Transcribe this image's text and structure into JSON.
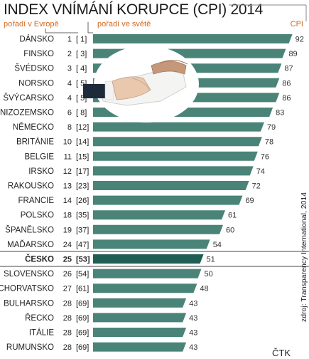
{
  "chart_data": {
    "type": "bar",
    "orientation": "horizontal",
    "title": "INDEX VNÍMÁNÍ KORUPCE (CPI) 2014",
    "header_europe": "pořadí v Evropě",
    "header_world": "pořadí ve světě",
    "header_value": "CPI",
    "source": "zdroj: Transparency International, 2014",
    "agency": "ČTK",
    "highlight_country": "ČESKO",
    "colors": {
      "bar": "#4a8478",
      "highlight_bar": "#1f5e53",
      "accent": "#d2691e",
      "title": "#1a1a1a"
    },
    "rows": [
      {
        "country": "DÁNSKO",
        "europe": "1",
        "world": "[ 1]",
        "value": 92,
        "value_label": "92"
      },
      {
        "country": "FINSKO",
        "europe": "2",
        "world": "[ 3]",
        "value": 89,
        "value_label": "89"
      },
      {
        "country": "ŠVÉDSKO",
        "europe": "3",
        "world": "[ 4]",
        "value": 87,
        "value_label": "87"
      },
      {
        "country": "NORSKO",
        "europe": "4",
        "world": "[ 5]",
        "value": 86,
        "value_label": "86"
      },
      {
        "country": "ŠVÝCARSKO",
        "europe": "4",
        "world": "[ 5]",
        "value": 86,
        "value_label": "86"
      },
      {
        "country": "NIZOZEMSKO",
        "europe": "6",
        "world": "[ 8]",
        "value": 83,
        "value_label": "83"
      },
      {
        "country": "NĚMECKO",
        "europe": "8",
        "world": "[12]",
        "value": 79,
        "value_label": "79"
      },
      {
        "country": "BRITÁNIE",
        "europe": "10",
        "world": "[14]",
        "value": 78,
        "value_label": "78"
      },
      {
        "country": "BELGIE",
        "europe": "11",
        "world": "[15]",
        "value": 76,
        "value_label": "76"
      },
      {
        "country": "IRSKO",
        "europe": "12",
        "world": "[17]",
        "value": 74,
        "value_label": "74"
      },
      {
        "country": "RAKOUSKO",
        "europe": "13",
        "world": "[23]",
        "value": 72,
        "value_label": "72"
      },
      {
        "country": "FRANCIE",
        "europe": "14",
        "world": "[26]",
        "value": 69,
        "value_label": "69"
      },
      {
        "country": "POLSKO",
        "europe": "18",
        "world": "[35]",
        "value": 61,
        "value_label": "61"
      },
      {
        "country": "ŠPANĚLSKO",
        "europe": "19",
        "world": "[37]",
        "value": 60,
        "value_label": "60"
      },
      {
        "country": "MAĎARSKO",
        "europe": "24",
        "world": "[47]",
        "value": 54,
        "value_label": "54"
      },
      {
        "country": "ČESKO",
        "europe": "25",
        "world": "[53]",
        "value": 51,
        "value_label": "51"
      },
      {
        "country": "SLOVENSKO",
        "europe": "26",
        "world": "[54]",
        "value": 50,
        "value_label": "50"
      },
      {
        "country": "CHORVATSKO",
        "europe": "27",
        "world": "[61]",
        "value": 48,
        "value_label": "48"
      },
      {
        "country": "BULHARSKO",
        "europe": "28",
        "world": "[69]",
        "value": 43,
        "value_label": "43"
      },
      {
        "country": "ŘECKO",
        "europe": "28",
        "world": "[69]",
        "value": 43,
        "value_label": "43"
      },
      {
        "country": "ITÁLIE",
        "europe": "28",
        "world": "[69]",
        "value": 43,
        "value_label": "43"
      },
      {
        "country": "RUMUNSKO",
        "europe": "28",
        "world": "[69]",
        "value": 43,
        "value_label": "43"
      }
    ]
  }
}
